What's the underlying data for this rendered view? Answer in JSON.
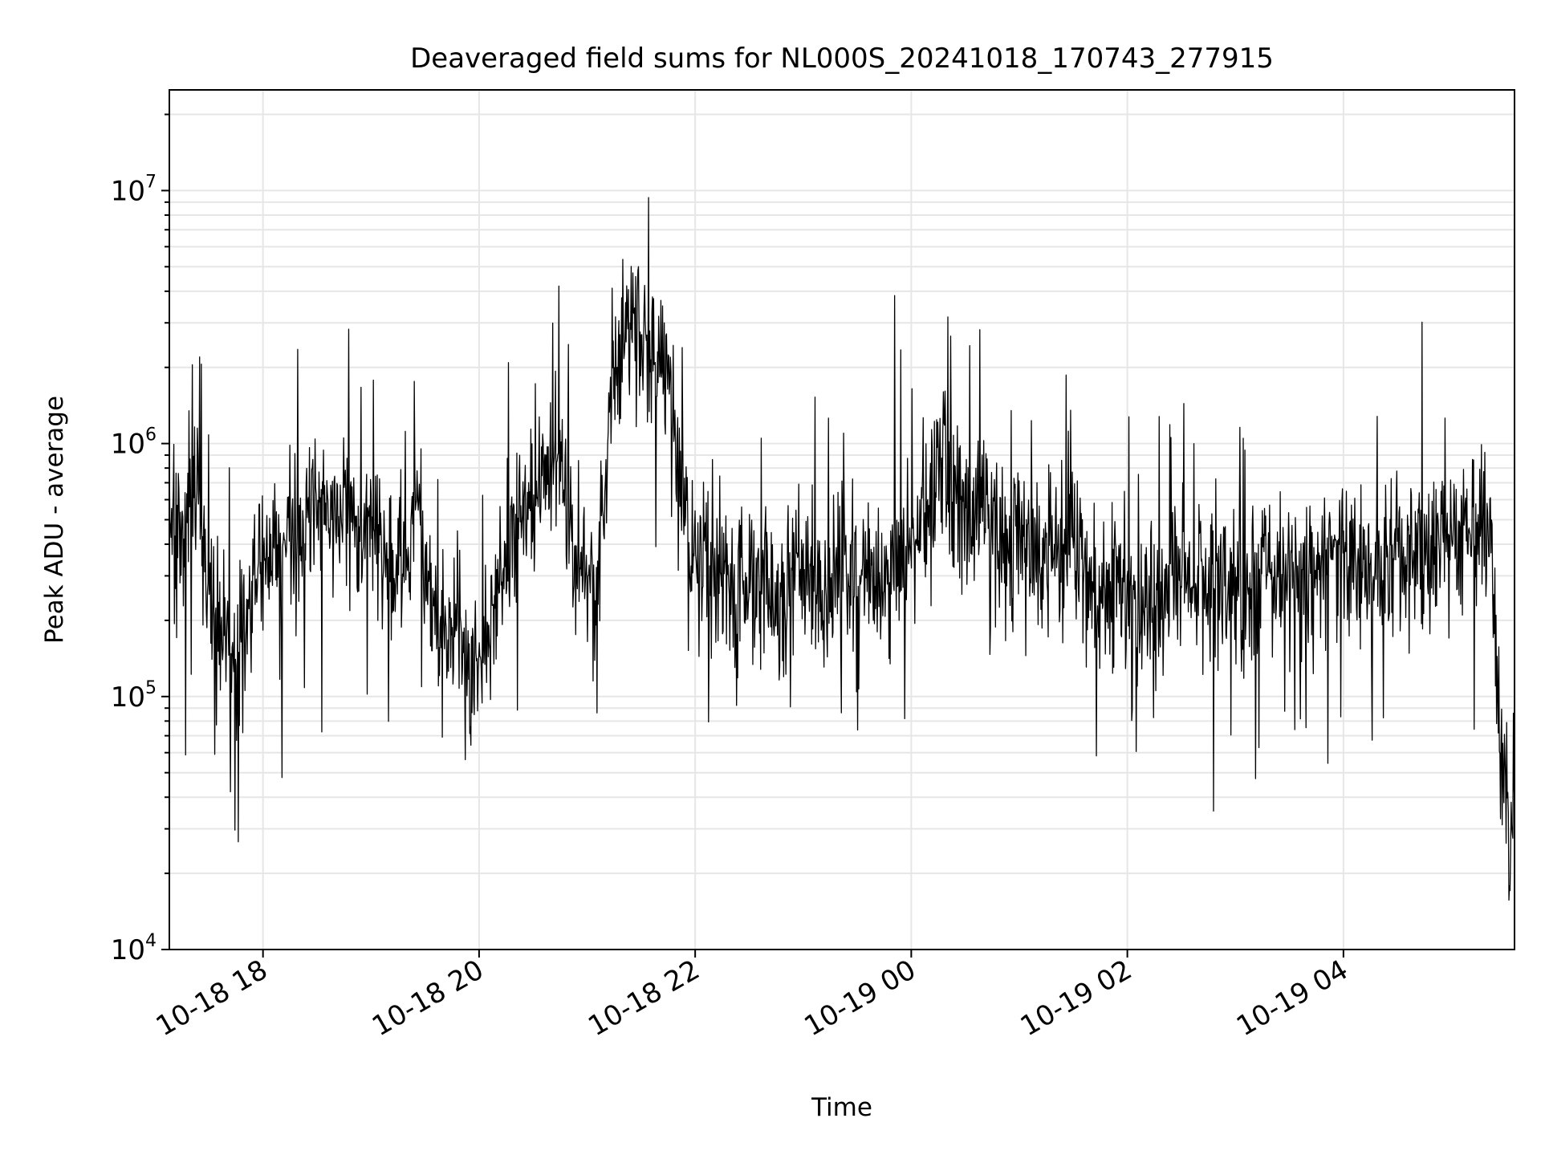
{
  "chart_data": {
    "type": "line",
    "title": "Deaveraged field sums for NL000S_20241018_170743_277915",
    "xlabel": "Time",
    "ylabel": "Peak ADU - average",
    "yscale": "log",
    "ylim": [
      10000,
      25000000
    ],
    "xlim": [
      "2024-10-18 17:08",
      "2024-10-19 05:35"
    ],
    "grid": true,
    "x_ticks": [
      "10-18 18",
      "10-18 20",
      "10-18 22",
      "10-19 00",
      "10-19 02",
      "10-19 04"
    ],
    "y_ticks": [
      {
        "base": "10",
        "exp": "4",
        "value": 10000
      },
      {
        "base": "10",
        "exp": "5",
        "value": 100000
      },
      {
        "base": "10",
        "exp": "6",
        "value": 1000000
      },
      {
        "base": "10",
        "exp": "7",
        "value": 10000000
      }
    ],
    "series": [
      {
        "color": "#000000",
        "x": [
          "2024-10-18 17:08",
          "2024-10-18 17:15",
          "2024-10-18 17:22",
          "2024-10-18 17:30",
          "2024-10-18 17:36",
          "2024-10-18 17:45",
          "2024-10-18 18:00",
          "2024-10-18 18:15",
          "2024-10-18 18:30",
          "2024-10-18 18:45",
          "2024-10-18 19:00",
          "2024-10-18 19:15",
          "2024-10-18 19:25",
          "2024-10-18 19:35",
          "2024-10-18 19:50",
          "2024-10-18 20:00",
          "2024-10-18 20:10",
          "2024-10-18 20:20",
          "2024-10-18 20:35",
          "2024-10-18 20:45",
          "2024-10-18 20:55",
          "2024-10-18 21:05",
          "2024-10-18 21:15",
          "2024-10-18 21:25",
          "2024-10-18 21:35",
          "2024-10-18 21:45",
          "2024-10-18 22:00",
          "2024-10-18 22:15",
          "2024-10-18 22:30",
          "2024-10-18 22:45",
          "2024-10-18 23:00",
          "2024-10-18 23:15",
          "2024-10-18 23:30",
          "2024-10-18 23:45",
          "2024-10-19 00:00",
          "2024-10-19 00:15",
          "2024-10-19 00:30",
          "2024-10-19 00:45",
          "2024-10-19 01:00",
          "2024-10-19 01:15",
          "2024-10-19 01:30",
          "2024-10-19 01:45",
          "2024-10-19 02:00",
          "2024-10-19 02:15",
          "2024-10-19 02:30",
          "2024-10-19 02:45",
          "2024-10-19 03:00",
          "2024-10-19 03:15",
          "2024-10-19 03:30",
          "2024-10-19 03:45",
          "2024-10-19 04:00",
          "2024-10-19 04:15",
          "2024-10-19 04:30",
          "2024-10-19 04:45",
          "2024-10-19 05:00",
          "2024-10-19 05:15",
          "2024-10-19 05:22",
          "2024-10-19 05:28",
          "2024-10-19 05:35"
        ],
        "y": [
          500000,
          450000,
          800000,
          250000,
          180000,
          150000,
          350000,
          450000,
          550000,
          600000,
          450000,
          350000,
          550000,
          220000,
          150000,
          120000,
          250000,
          450000,
          700000,
          1000000,
          350000,
          250000,
          2000000,
          3000000,
          2500000,
          1500000,
          350000,
          300000,
          280000,
          250000,
          300000,
          250000,
          320000,
          280000,
          420000,
          800000,
          650000,
          500000,
          450000,
          380000,
          350000,
          250000,
          250000,
          220000,
          280000,
          300000,
          280000,
          280000,
          300000,
          320000,
          350000,
          320000,
          350000,
          380000,
          420000,
          420000,
          500000,
          40000,
          30000
        ]
      }
    ]
  }
}
